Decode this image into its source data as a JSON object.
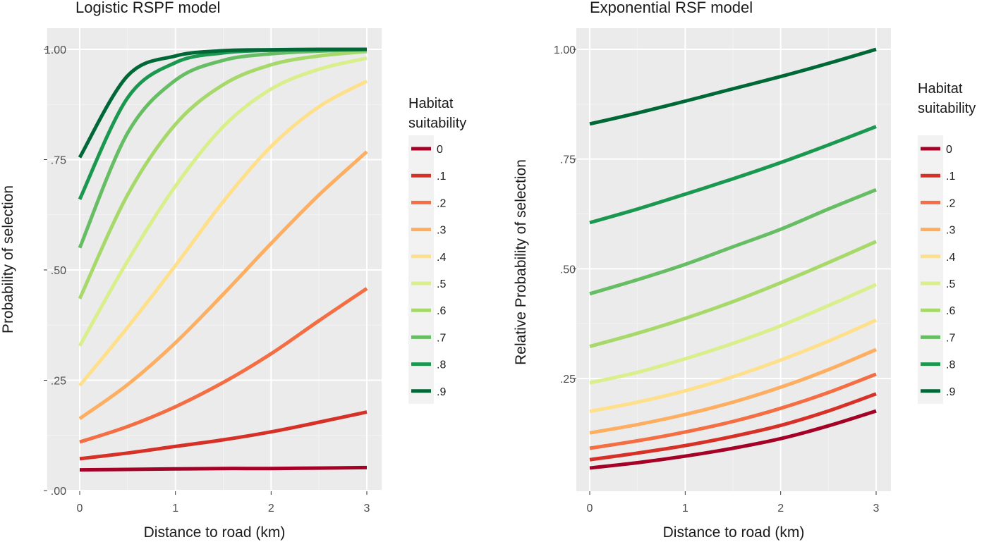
{
  "chart_data": [
    {
      "type": "line",
      "title": "Logistic RSPF model",
      "xlabel": "Distance to road (km)",
      "ylabel": "Probability of selection",
      "xlim": [
        0,
        3
      ],
      "ylim": [
        0,
        1
      ],
      "x_ticks": [
        0,
        1,
        2,
        3
      ],
      "x_tick_labels": [
        "0",
        "1",
        "2",
        "3"
      ],
      "y_ticks": [
        0,
        0.25,
        0.5,
        0.75,
        1.0
      ],
      "y_tick_labels": [
        ".00",
        ".25",
        ".50",
        ".75",
        "1.00"
      ],
      "grid": true,
      "legend": {
        "title_lines": [
          "Habitat",
          "suitability"
        ],
        "placement": "right"
      },
      "x": [
        0,
        0.5,
        1,
        1.5,
        2,
        2.5,
        3
      ],
      "series": [
        {
          "name": "0",
          "color": "#a50026",
          "values": [
            0.047,
            0.048,
            0.049,
            0.05,
            0.05,
            0.051,
            0.052
          ]
        },
        {
          "name": ".1",
          "color": "#d73027",
          "values": [
            0.072,
            0.085,
            0.1,
            0.115,
            0.133,
            0.155,
            0.178
          ]
        },
        {
          "name": ".2",
          "color": "#f46d43",
          "values": [
            0.11,
            0.145,
            0.19,
            0.245,
            0.31,
            0.385,
            0.458
          ]
        },
        {
          "name": ".3",
          "color": "#fdae61",
          "values": [
            0.163,
            0.24,
            0.335,
            0.445,
            0.56,
            0.67,
            0.768
          ]
        },
        {
          "name": ".4",
          "color": "#fee08b",
          "values": [
            0.238,
            0.37,
            0.51,
            0.655,
            0.78,
            0.87,
            0.928
          ]
        },
        {
          "name": ".5",
          "color": "#d9ef8b",
          "values": [
            0.328,
            0.52,
            0.69,
            0.825,
            0.91,
            0.955,
            0.98
          ]
        },
        {
          "name": ".6",
          "color": "#a6d96a",
          "values": [
            0.435,
            0.67,
            0.83,
            0.92,
            0.965,
            0.985,
            0.995
          ]
        },
        {
          "name": ".7",
          "color": "#66bd63",
          "values": [
            0.55,
            0.81,
            0.93,
            0.975,
            0.99,
            0.996,
            0.999
          ]
        },
        {
          "name": ".8",
          "color": "#1a9850",
          "values": [
            0.66,
            0.89,
            0.97,
            0.992,
            0.998,
            0.999,
            1.0
          ]
        },
        {
          "name": ".9",
          "color": "#006837",
          "values": [
            0.755,
            0.94,
            0.985,
            0.997,
            0.999,
            1.0,
            1.0
          ]
        }
      ]
    },
    {
      "type": "line",
      "title": "Exponential RSF model",
      "xlabel": "Distance to road (km)",
      "ylabel": "Relative Probability of selection",
      "xlim": [
        0,
        3
      ],
      "ylim": [
        0.04,
        1
      ],
      "x_ticks": [
        0,
        1,
        2,
        3
      ],
      "x_tick_labels": [
        "0",
        "1",
        "2",
        "3"
      ],
      "y_ticks": [
        0.25,
        0.5,
        0.75,
        1.0
      ],
      "y_tick_labels": [
        ".25",
        ".50",
        ".75",
        "1.00"
      ],
      "grid": true,
      "legend": {
        "title_lines": [
          "Habitat",
          "suitability"
        ],
        "placement": "right"
      },
      "x": [
        0,
        0.5,
        1,
        1.5,
        2,
        2.5,
        3
      ],
      "series": [
        {
          "name": "0",
          "color": "#a50026",
          "values": [
            0.046,
            0.058,
            0.073,
            0.091,
            0.113,
            0.142,
            0.176
          ]
        },
        {
          "name": ".1",
          "color": "#d73027",
          "values": [
            0.065,
            0.08,
            0.097,
            0.118,
            0.143,
            0.176,
            0.215
          ]
        },
        {
          "name": ".2",
          "color": "#f46d43",
          "values": [
            0.091,
            0.108,
            0.128,
            0.152,
            0.182,
            0.218,
            0.26
          ]
        },
        {
          "name": ".3",
          "color": "#fdae61",
          "values": [
            0.126,
            0.145,
            0.168,
            0.196,
            0.23,
            0.27,
            0.316
          ]
        },
        {
          "name": ".4",
          "color": "#fee08b",
          "values": [
            0.175,
            0.196,
            0.222,
            0.254,
            0.292,
            0.335,
            0.383
          ]
        },
        {
          "name": ".5",
          "color": "#d9ef8b",
          "values": [
            0.24,
            0.264,
            0.295,
            0.33,
            0.37,
            0.416,
            0.464
          ]
        },
        {
          "name": ".6",
          "color": "#a6d96a",
          "values": [
            0.323,
            0.353,
            0.387,
            0.425,
            0.468,
            0.514,
            0.562
          ]
        },
        {
          "name": ".7",
          "color": "#66bd63",
          "values": [
            0.443,
            0.475,
            0.51,
            0.55,
            0.59,
            0.636,
            0.68
          ]
        },
        {
          "name": ".8",
          "color": "#1a9850",
          "values": [
            0.605,
            0.636,
            0.67,
            0.705,
            0.742,
            0.782,
            0.824
          ]
        },
        {
          "name": ".9",
          "color": "#006837",
          "values": [
            0.83,
            0.855,
            0.882,
            0.91,
            0.938,
            0.968,
            1.0
          ]
        }
      ]
    }
  ]
}
